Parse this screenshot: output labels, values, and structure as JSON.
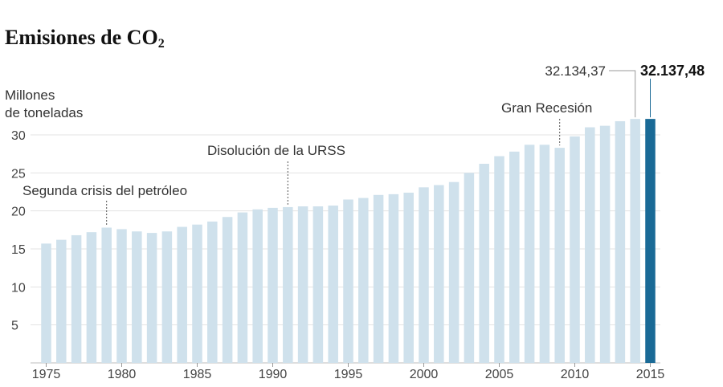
{
  "title_main": "Emisiones de CO",
  "title_sub": "2",
  "unit_line1": "Millones",
  "unit_line2": "de toneladas",
  "colors": {
    "bar": "#cfe1ec",
    "highlight": "#1a6a96",
    "grid": "#e3e3e3"
  },
  "chart_data": {
    "type": "bar",
    "x": [
      1975,
      1976,
      1977,
      1978,
      1979,
      1980,
      1981,
      1982,
      1983,
      1984,
      1985,
      1986,
      1987,
      1988,
      1989,
      1990,
      1991,
      1992,
      1993,
      1994,
      1995,
      1996,
      1997,
      1998,
      1999,
      2000,
      2001,
      2002,
      2003,
      2004,
      2005,
      2006,
      2007,
      2008,
      2009,
      2010,
      2011,
      2012,
      2013,
      2014,
      2015
    ],
    "values": [
      15.7,
      16.2,
      16.8,
      17.2,
      17.8,
      17.6,
      17.3,
      17.1,
      17.3,
      17.9,
      18.2,
      18.6,
      19.2,
      19.8,
      20.2,
      20.4,
      20.5,
      20.6,
      20.6,
      20.7,
      21.5,
      21.7,
      22.1,
      22.2,
      22.4,
      23.1,
      23.4,
      23.8,
      25.0,
      26.2,
      27.2,
      27.8,
      28.7,
      28.7,
      28.3,
      29.8,
      31.0,
      31.2,
      31.8,
      32.1,
      32.1
    ],
    "highlight_year": 2015,
    "ylim": [
      0,
      32.5
    ],
    "yticks": [
      5,
      10,
      15,
      20,
      25,
      30
    ],
    "xticks": [
      1975,
      1980,
      1985,
      1990,
      1995,
      2000,
      2005,
      2010,
      2015
    ],
    "grid": true,
    "annotations": [
      {
        "text": "Segunda crisis del petróleo",
        "year": 1979
      },
      {
        "text": "Disolución de la URSS",
        "year": 1991
      },
      {
        "text": "Gran Recesión",
        "year": 2009
      }
    ],
    "value_labels": {
      "prev_year": 2014,
      "prev_label": "32.134,37",
      "last_label": "32.137,48"
    }
  }
}
